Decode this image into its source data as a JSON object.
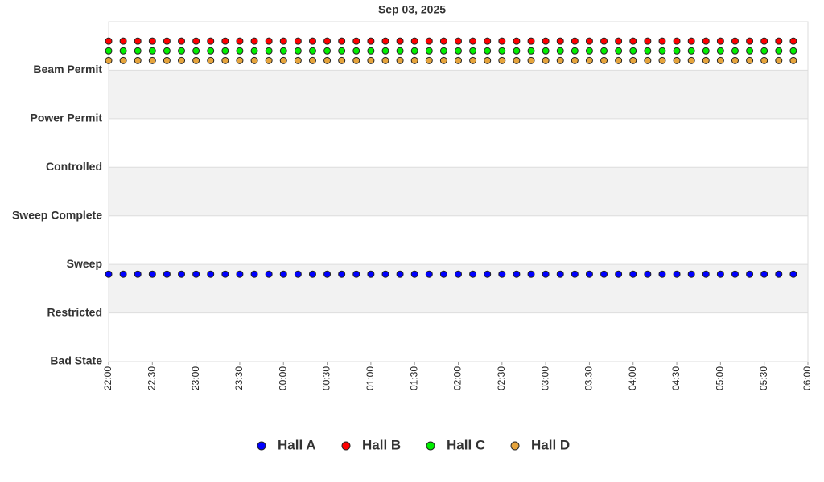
{
  "chart_data": {
    "type": "scatter",
    "title": "Sep 03, 2025",
    "x": [
      "22:00",
      "22:10",
      "22:20",
      "22:30",
      "22:40",
      "22:50",
      "23:00",
      "23:10",
      "23:20",
      "23:30",
      "23:40",
      "23:50",
      "00:00",
      "00:10",
      "00:20",
      "00:30",
      "00:40",
      "00:50",
      "01:00",
      "01:10",
      "01:20",
      "01:30",
      "01:40",
      "01:50",
      "02:00",
      "02:10",
      "02:20",
      "02:30",
      "02:40",
      "02:50",
      "03:00",
      "03:10",
      "03:20",
      "03:30",
      "03:40",
      "03:50",
      "04:00",
      "04:10",
      "04:20",
      "04:30",
      "04:40",
      "04:50",
      "05:00",
      "05:10",
      "05:20",
      "05:30",
      "05:40",
      "05:50"
    ],
    "xlim": [
      "22:00",
      "06:00"
    ],
    "xticks": [
      "22:00",
      "22:30",
      "23:00",
      "23:30",
      "00:00",
      "00:30",
      "01:00",
      "01:30",
      "02:00",
      "02:30",
      "03:00",
      "03:30",
      "04:00",
      "04:30",
      "05:00",
      "05:30",
      "06:00"
    ],
    "ylim": [
      0,
      7
    ],
    "yticks": [
      {
        "value": 0,
        "label": "Bad State"
      },
      {
        "value": 1,
        "label": "Restricted"
      },
      {
        "value": 2,
        "label": "Sweep"
      },
      {
        "value": 3,
        "label": "Sweep Complete"
      },
      {
        "value": 4,
        "label": "Controlled"
      },
      {
        "value": 5,
        "label": "Power Permit"
      },
      {
        "value": 6,
        "label": "Beam Permit"
      }
    ],
    "grid": true,
    "legend": "bottom",
    "series": [
      {
        "name": "Hall A",
        "color": "#0000ff",
        "values": [
          1.8,
          1.8,
          1.8,
          1.8,
          1.8,
          1.8,
          1.8,
          1.8,
          1.8,
          1.8,
          1.8,
          1.8,
          1.8,
          1.8,
          1.8,
          1.8,
          1.8,
          1.8,
          1.8,
          1.8,
          1.8,
          1.8,
          1.8,
          1.8,
          1.8,
          1.8,
          1.8,
          1.8,
          1.8,
          1.8,
          1.8,
          1.8,
          1.8,
          1.8,
          1.8,
          1.8,
          1.8,
          1.8,
          1.8,
          1.8,
          1.8,
          1.8,
          1.8,
          1.8,
          1.8,
          1.8,
          1.8,
          1.8
        ]
      },
      {
        "name": "Hall B",
        "color": "#ff0000",
        "values": [
          6.6,
          6.6,
          6.6,
          6.6,
          6.6,
          6.6,
          6.6,
          6.6,
          6.6,
          6.6,
          6.6,
          6.6,
          6.6,
          6.6,
          6.6,
          6.6,
          6.6,
          6.6,
          6.6,
          6.6,
          6.6,
          6.6,
          6.6,
          6.6,
          6.6,
          6.6,
          6.6,
          6.6,
          6.6,
          6.6,
          6.6,
          6.6,
          6.6,
          6.6,
          6.6,
          6.6,
          6.6,
          6.6,
          6.6,
          6.6,
          6.6,
          6.6,
          6.6,
          6.6,
          6.6,
          6.6,
          6.6,
          6.6
        ]
      },
      {
        "name": "Hall C",
        "color": "#00ee00",
        "values": [
          6.4,
          6.4,
          6.4,
          6.4,
          6.4,
          6.4,
          6.4,
          6.4,
          6.4,
          6.4,
          6.4,
          6.4,
          6.4,
          6.4,
          6.4,
          6.4,
          6.4,
          6.4,
          6.4,
          6.4,
          6.4,
          6.4,
          6.4,
          6.4,
          6.4,
          6.4,
          6.4,
          6.4,
          6.4,
          6.4,
          6.4,
          6.4,
          6.4,
          6.4,
          6.4,
          6.4,
          6.4,
          6.4,
          6.4,
          6.4,
          6.4,
          6.4,
          6.4,
          6.4,
          6.4,
          6.4,
          6.4,
          6.4
        ]
      },
      {
        "name": "Hall D",
        "color": "#e6a43c",
        "values": [
          6.2,
          6.2,
          6.2,
          6.2,
          6.2,
          6.2,
          6.2,
          6.2,
          6.2,
          6.2,
          6.2,
          6.2,
          6.2,
          6.2,
          6.2,
          6.2,
          6.2,
          6.2,
          6.2,
          6.2,
          6.2,
          6.2,
          6.2,
          6.2,
          6.2,
          6.2,
          6.2,
          6.2,
          6.2,
          6.2,
          6.2,
          6.2,
          6.2,
          6.2,
          6.2,
          6.2,
          6.2,
          6.2,
          6.2,
          6.2,
          6.2,
          6.2,
          6.2,
          6.2,
          6.2,
          6.2,
          6.2,
          6.2
        ]
      }
    ]
  }
}
